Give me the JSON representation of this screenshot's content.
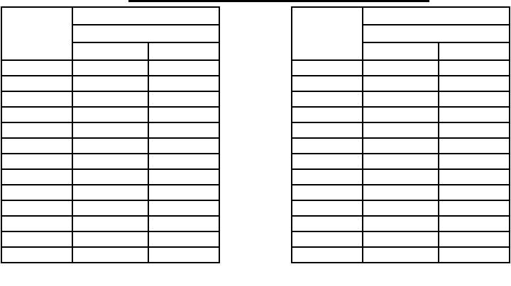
{
  "title": "",
  "tables": [
    {
      "header": {
        "corner": "",
        "group": "",
        "subgroup": "",
        "col1": "",
        "col2": ""
      },
      "rows": [
        [
          "",
          "",
          ""
        ],
        [
          "",
          "",
          ""
        ],
        [
          "",
          "",
          ""
        ],
        [
          "",
          "",
          ""
        ],
        [
          "",
          "",
          ""
        ],
        [
          "",
          "",
          ""
        ],
        [
          "",
          "",
          ""
        ],
        [
          "",
          "",
          ""
        ],
        [
          "",
          "",
          ""
        ],
        [
          "",
          "",
          ""
        ],
        [
          "",
          "",
          ""
        ],
        [
          "",
          "",
          ""
        ],
        [
          "",
          "",
          ""
        ]
      ]
    },
    {
      "header": {
        "corner": "",
        "group": "",
        "subgroup": "",
        "col1": "",
        "col2": ""
      },
      "rows": [
        [
          "",
          "",
          ""
        ],
        [
          "",
          "",
          ""
        ],
        [
          "",
          "",
          ""
        ],
        [
          "",
          "",
          ""
        ],
        [
          "",
          "",
          ""
        ],
        [
          "",
          "",
          ""
        ],
        [
          "",
          "",
          ""
        ],
        [
          "",
          "",
          ""
        ],
        [
          "",
          "",
          ""
        ],
        [
          "",
          "",
          ""
        ],
        [
          "",
          "",
          ""
        ],
        [
          "",
          "",
          ""
        ],
        [
          "",
          "",
          ""
        ]
      ]
    }
  ]
}
